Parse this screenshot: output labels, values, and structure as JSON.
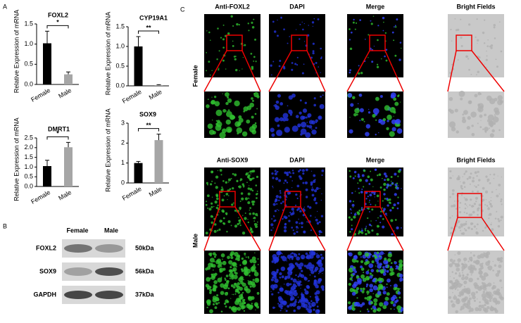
{
  "figure": {
    "panel_labels": [
      "A",
      "B",
      "C"
    ]
  },
  "chart_data": [
    {
      "type": "bar",
      "title": "FOXL2",
      "ylabel": "Relative Expression of mRNA",
      "categories": [
        "Female",
        "Male"
      ],
      "values": [
        1.02,
        0.25
      ],
      "errors": [
        0.3,
        0.06
      ],
      "colors": [
        "#000000",
        "#a6a6a6"
      ],
      "ylim": [
        0,
        1.5
      ],
      "yticks": [
        {
          "value": 0,
          "label": "0.0"
        },
        0.5,
        {
          "value": 1,
          "label": "1.0"
        },
        1.5
      ],
      "annotation": "*"
    },
    {
      "type": "bar",
      "title": "CYP19A1",
      "ylabel": "Relative Expression of mRNA",
      "categories": [
        "Female",
        "Male"
      ],
      "values": [
        1.0,
        0.02
      ],
      "errors": [
        0.25,
        0.01
      ],
      "colors": [
        "#000000",
        "#a6a6a6"
      ],
      "ylim": [
        0,
        1.5
      ],
      "yticks": [
        {
          "value": 0,
          "label": "0.0"
        },
        0.5,
        {
          "value": 1,
          "label": "1.0"
        },
        1.5
      ],
      "annotation": "**"
    },
    {
      "type": "bar",
      "title": "DMRT1",
      "ylabel": "Relative Expression of mRNA",
      "categories": [
        "Female",
        "Male"
      ],
      "values": [
        1.05,
        2.02
      ],
      "errors": [
        0.3,
        0.25
      ],
      "colors": [
        "#000000",
        "#a6a6a6"
      ],
      "ylim": [
        0,
        2.5
      ],
      "yticks": [
        {
          "value": 0,
          "label": "0.0"
        },
        0.5,
        {
          "value": 1,
          "label": "1.0"
        },
        1.5,
        {
          "value": 2,
          "label": "2.0"
        },
        2.5
      ],
      "annotation": "*"
    },
    {
      "type": "bar",
      "title": "SOX9",
      "ylabel": "Relative Expression of mRNA",
      "categories": [
        "Female",
        "Male"
      ],
      "values": [
        1.0,
        2.15
      ],
      "errors": [
        0.08,
        0.3
      ],
      "colors": [
        "#000000",
        "#a6a6a6"
      ],
      "ylim": [
        0,
        3
      ],
      "yticks": [
        0,
        1,
        2,
        3
      ],
      "annotation": "**"
    }
  ],
  "blot": {
    "lanes": [
      "Female",
      "Male"
    ],
    "proteins": [
      "FOXL2",
      "SOX9",
      "GAPDH"
    ],
    "sizes": [
      "50kDa",
      "56kDa",
      "37kDa"
    ]
  },
  "images": {
    "rows": [
      {
        "label": "Female",
        "columns": [
          "Anti-FOXL2",
          "DAPI",
          "Merge",
          "Bright Fields"
        ]
      },
      {
        "label": "Male",
        "columns": [
          "Anti-SOX9",
          "DAPI",
          "Merge",
          "Bright Fields"
        ]
      }
    ]
  }
}
